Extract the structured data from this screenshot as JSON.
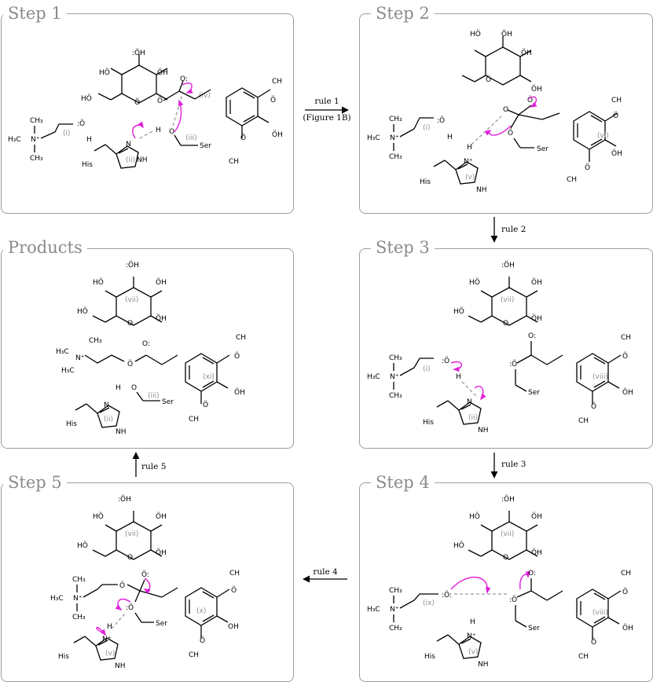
{
  "panels": [
    {
      "id": "step1",
      "title": "Step 1"
    },
    {
      "id": "step2",
      "title": "Step 2"
    },
    {
      "id": "step3",
      "title": "Step 3"
    },
    {
      "id": "step4",
      "title": "Step 4"
    },
    {
      "id": "step5",
      "title": "Step 5"
    },
    {
      "id": "products",
      "title": "Products"
    }
  ],
  "arrows": [
    {
      "from": "step1",
      "to": "step2",
      "label": "rule 1",
      "sublabel": "(Figure 1B)"
    },
    {
      "from": "step2",
      "to": "step3",
      "label": "rule 2"
    },
    {
      "from": "step3",
      "to": "step4",
      "label": "rule 3"
    },
    {
      "from": "step4",
      "to": "step5",
      "label": "rule 4"
    },
    {
      "from": "step5",
      "to": "products",
      "label": "rule 5"
    }
  ],
  "molecule_labels": {
    "i": "(i)",
    "ii": "(ii)",
    "iii": "(iii)",
    "iv": "(iv)",
    "v": "(v)",
    "vi": "(vi)",
    "vii": "(vii)",
    "viii": "(viii)",
    "ix": "(ix)",
    "x": "(x)",
    "xi": "(xi)"
  },
  "atom_labels": {
    "his": "His",
    "ser": "Ser",
    "oh": "OH",
    "ho": "HO",
    "o": "O",
    "h": "H",
    "n": "N",
    "nh": "NH",
    "n_plus": "N+",
    "me": "CH3",
    "h3c": "H3C",
    "nme": "N+"
  },
  "colors": {
    "frame": "#9e9e9e",
    "title": "#8a8a8a",
    "curly_arrow": "#e020d8",
    "hbond": "#9a9a9a"
  }
}
